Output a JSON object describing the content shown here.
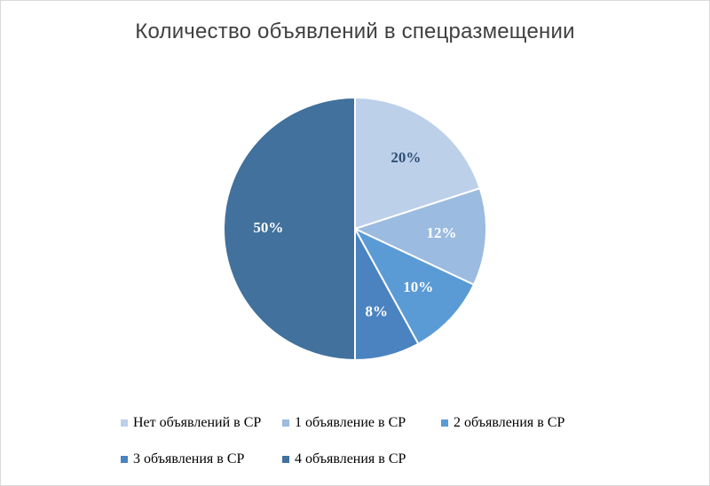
{
  "chart_data": {
    "type": "pie",
    "title": "Количество объявлений в спецразмещении",
    "categories": [
      "Нет объявлений в СР",
      "1 объявление в СР",
      "2 объявления в СР",
      "3 объявления в СР",
      "4 объявления в СР"
    ],
    "values": [
      20,
      12,
      10,
      8,
      50
    ],
    "data_labels": [
      "20%",
      "12%",
      "10%",
      "8%",
      "50%"
    ],
    "colors": [
      "#bdd0ea",
      "#9bbbe0",
      "#5b9bd5",
      "#4a83c0",
      "#41719c"
    ],
    "label_colors": [
      "#2f4f72",
      "#ffffff",
      "#ffffff",
      "#ffffff",
      "#ffffff"
    ],
    "legend_position": "bottom"
  }
}
